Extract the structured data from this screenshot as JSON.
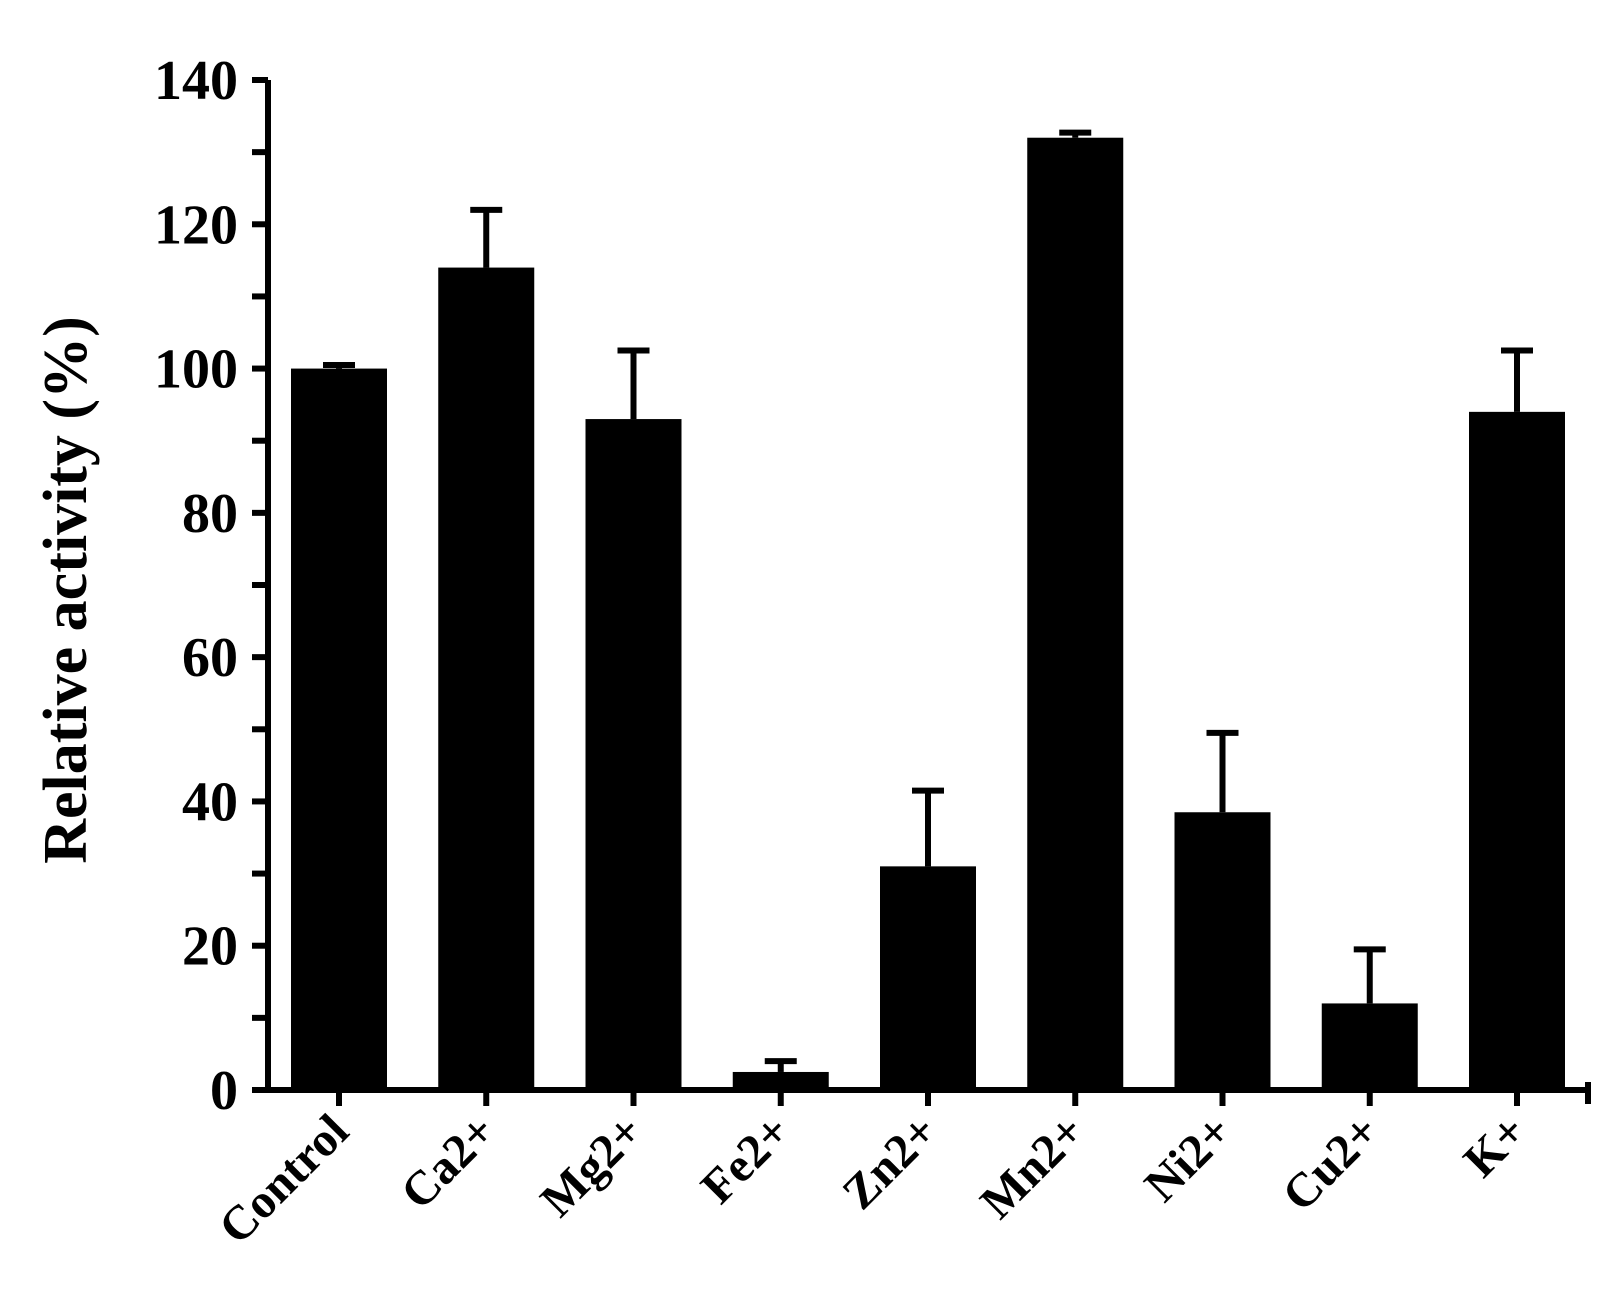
{
  "chart_data": {
    "type": "bar",
    "title": "",
    "xlabel": "",
    "ylabel": "Relative activity (%)",
    "categories": [
      "Control",
      "Ca2+",
      "Mg2+",
      "Fe2+",
      "Zn2+",
      "Mn2+",
      "Ni2+",
      "Cu2+",
      "K+"
    ],
    "values": [
      100,
      114,
      93,
      2.5,
      31,
      132,
      38.5,
      12,
      94
    ],
    "errors": [
      0.5,
      8,
      9.5,
      1.5,
      10.5,
      0.7,
      11,
      7.5,
      8.5
    ],
    "ylim": [
      0,
      140
    ],
    "yticks": [
      0,
      20,
      40,
      60,
      80,
      100,
      120,
      140
    ],
    "y_minor_step": 10,
    "grid": false,
    "legend": "none",
    "bar_color": "#000000"
  }
}
